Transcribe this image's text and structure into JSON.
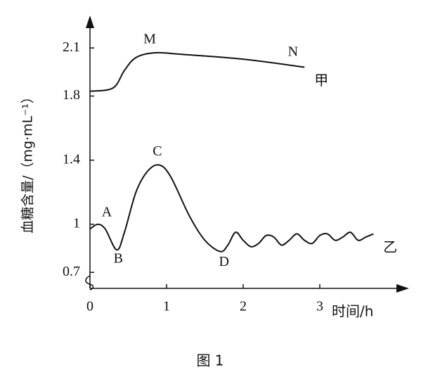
{
  "chart_data": {
    "type": "line",
    "ylabel": "血糖含量/（mg·mL⁻¹）",
    "xlabel": "时间/h",
    "caption": "图 1",
    "xlim": [
      0,
      4
    ],
    "xticks": [
      0,
      1,
      2,
      3
    ],
    "ylim": [
      0.6,
      2.25
    ],
    "yticks": [
      0.7,
      1,
      1.4,
      1.8,
      2.1
    ],
    "series": [
      {
        "name": "甲",
        "color": "#111111",
        "x": [
          0,
          0.3,
          0.45,
          0.6,
          0.85,
          1.2,
          2,
          2.8
        ],
        "values": [
          1.83,
          1.85,
          1.96,
          2.04,
          2.07,
          2.06,
          2.03,
          1.98
        ]
      },
      {
        "name": "乙",
        "color": "#111111",
        "x": [
          0,
          0.1,
          0.2,
          0.35,
          0.45,
          0.6,
          0.75,
          0.9,
          1.05,
          1.3,
          1.5,
          1.7,
          1.8,
          1.9,
          2.0,
          2.1,
          2.2,
          2.3,
          2.4,
          2.5,
          2.6,
          2.7,
          2.8,
          2.9,
          3.0,
          3.1,
          3.2,
          3.3,
          3.4,
          3.5,
          3.6,
          3.7
        ],
        "values": [
          0.97,
          1.0,
          0.97,
          0.84,
          0.95,
          1.2,
          1.33,
          1.37,
          1.3,
          1.05,
          0.9,
          0.83,
          0.87,
          0.95,
          0.9,
          0.86,
          0.88,
          0.93,
          0.92,
          0.87,
          0.9,
          0.94,
          0.9,
          0.88,
          0.93,
          0.94,
          0.9,
          0.92,
          0.95,
          0.9,
          0.92,
          0.94
        ]
      }
    ],
    "annotations": [
      {
        "text": "A",
        "x": 0.22,
        "y": 1.07
      },
      {
        "text": "B",
        "x": 0.37,
        "y": 0.78
      },
      {
        "text": "C",
        "x": 0.88,
        "y": 1.45
      },
      {
        "text": "D",
        "x": 1.75,
        "y": 0.76
      },
      {
        "text": "M",
        "x": 0.78,
        "y": 2.15
      },
      {
        "text": "N",
        "x": 2.65,
        "y": 2.07
      }
    ]
  }
}
